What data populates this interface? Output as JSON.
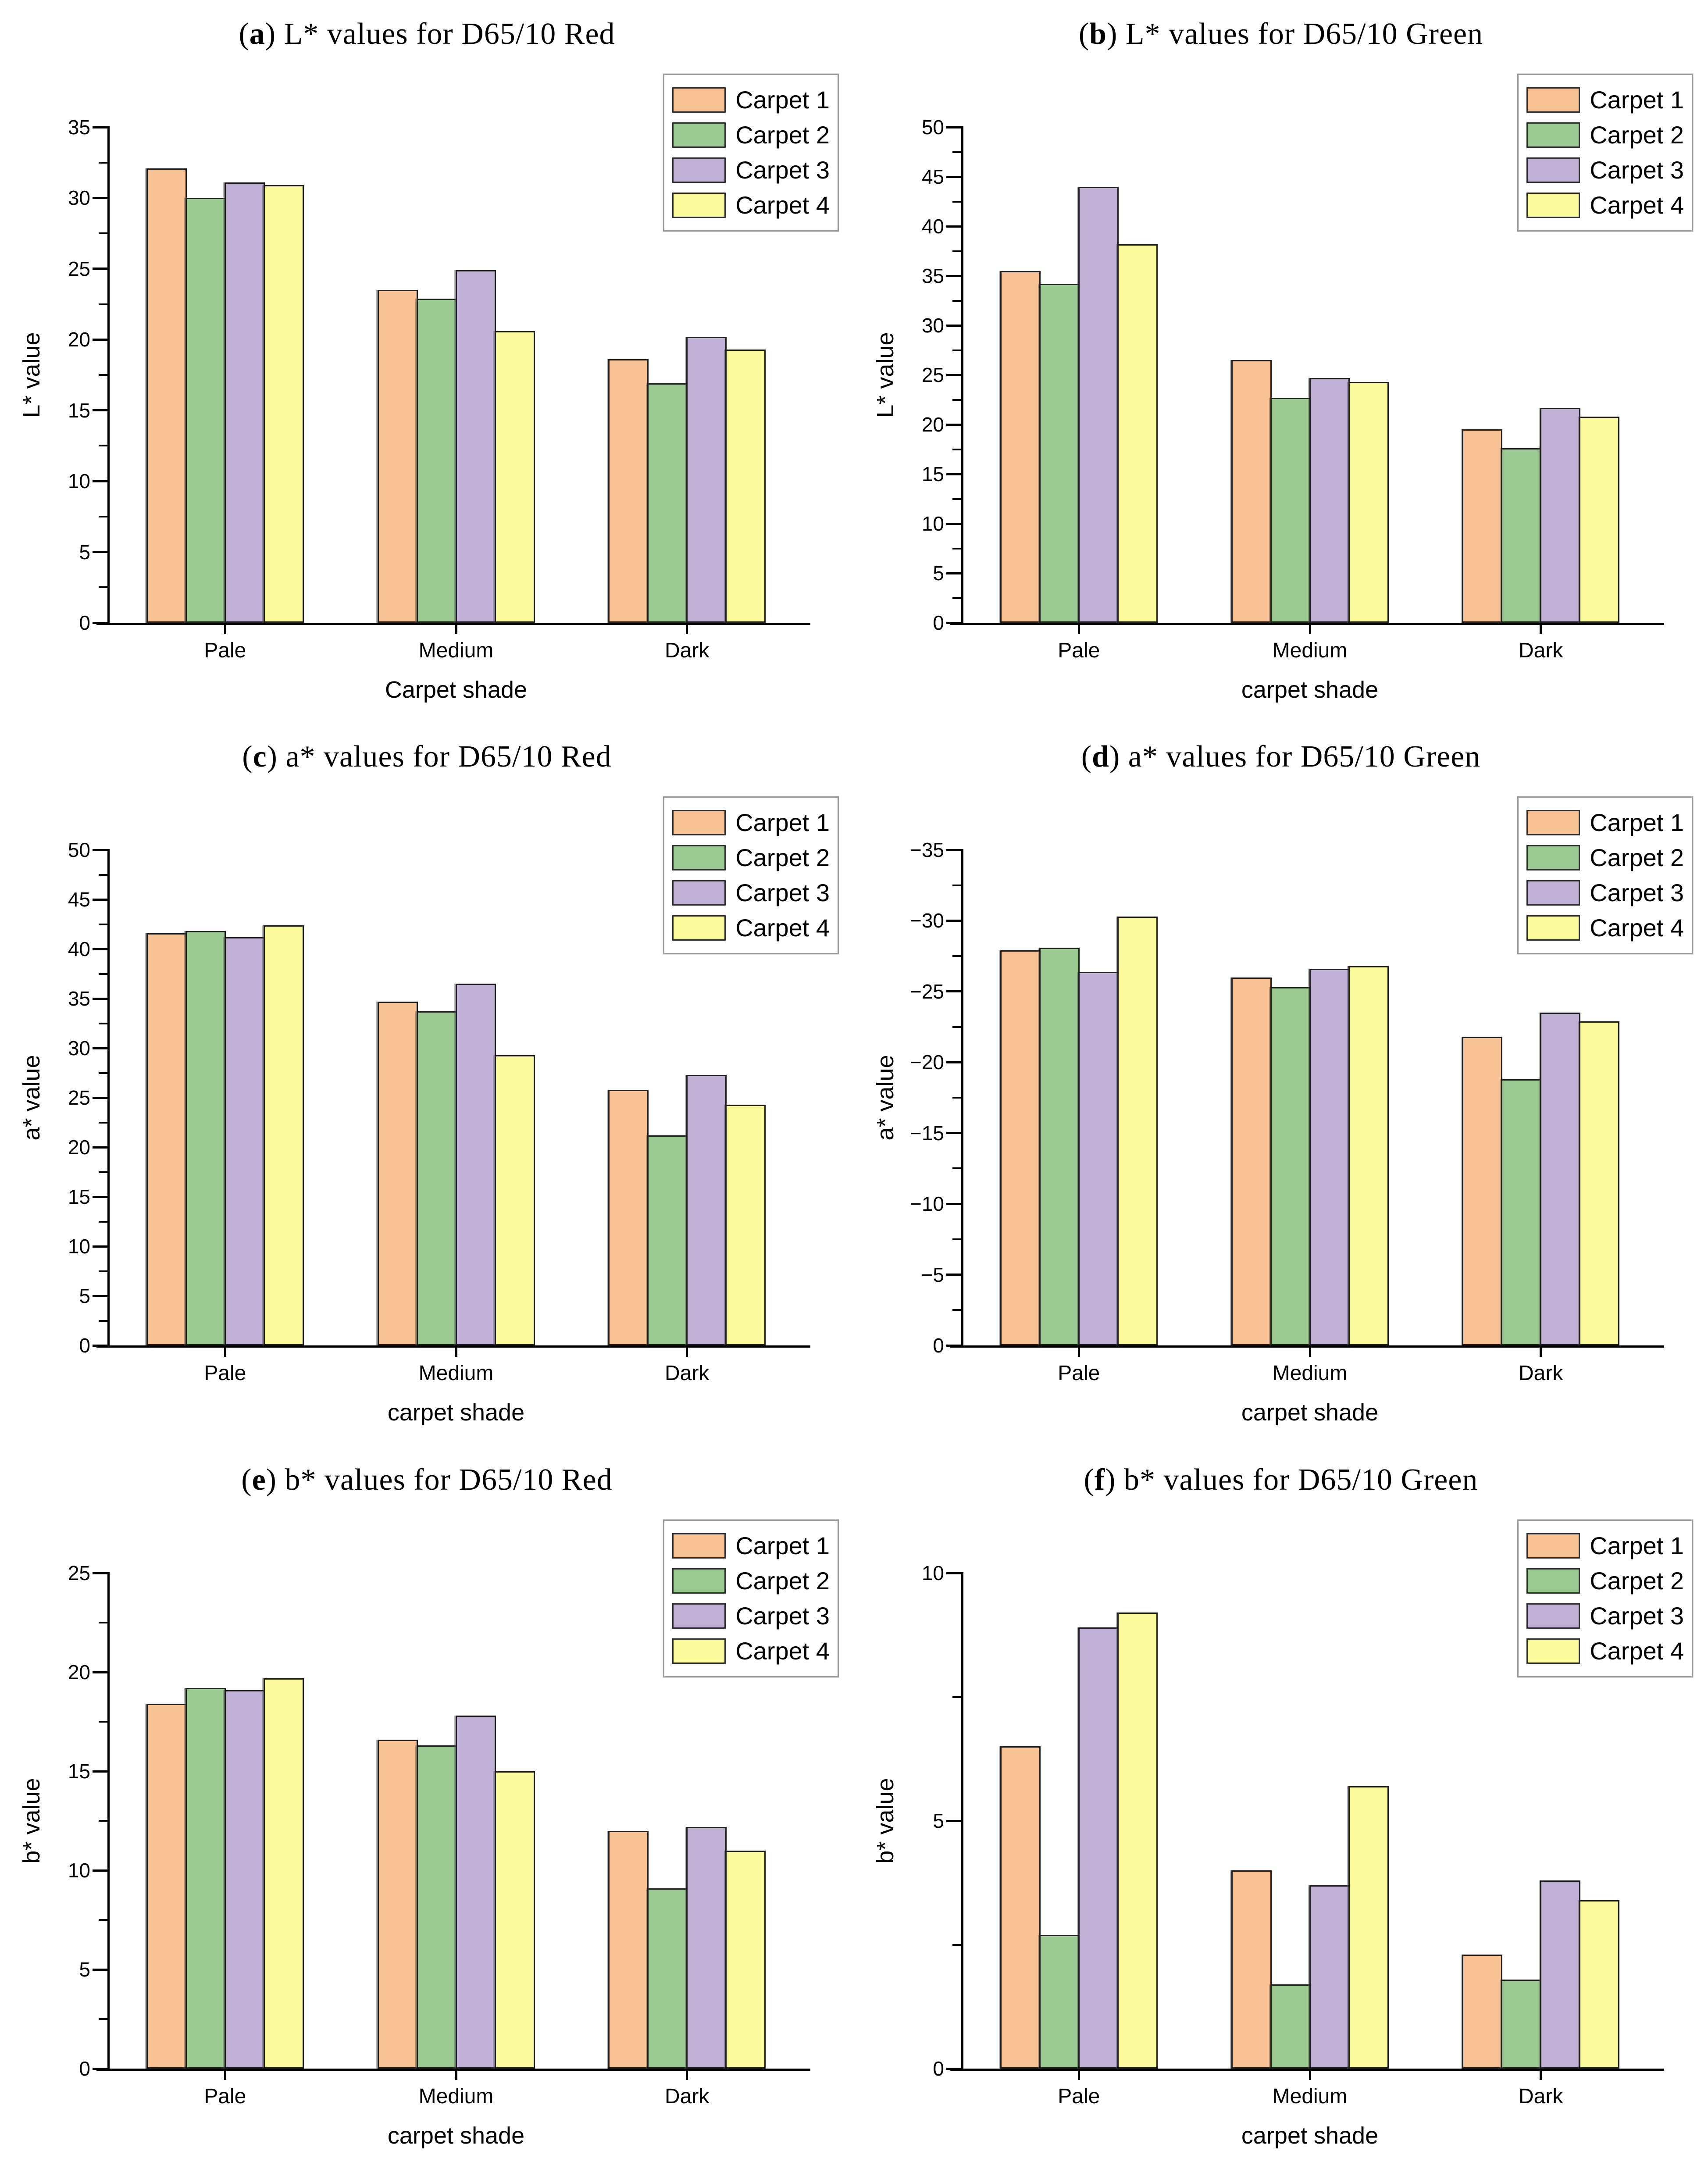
{
  "colors": {
    "series": [
      "#F8C294",
      "#9BCB93",
      "#C0B0D5",
      "#FBFA9D"
    ],
    "bar_border": "#1f1f1f",
    "axis": "#000000",
    "legend_border": "#9a9a9a"
  },
  "legend": {
    "items": [
      "Carpet 1",
      "Carpet 2",
      "Carpet 3",
      "Carpet 4"
    ]
  },
  "chart_data": [
    {
      "type": "bar",
      "panel_letter": "a",
      "title_prefix": "(",
      "title_letter": "a",
      "title_suffix": ") L* values for D65/10 Red",
      "title": "(a) L* values for D65/10 Red",
      "xlabel": "Carpet shade",
      "ylabel": "L* value",
      "ylim": [
        0,
        35
      ],
      "ymax": 35,
      "ytick_interval": 5,
      "minor_tick_interval": 2.5,
      "yticks": [
        "0",
        "5",
        "10",
        "15",
        "20",
        "25",
        "30",
        "35"
      ],
      "grid": false,
      "legend_position": "top-right",
      "categories": [
        "Pale",
        "Medium",
        "Dark"
      ],
      "series": [
        {
          "name": "Carpet 1",
          "values": [
            32.1,
            23.5,
            18.6
          ]
        },
        {
          "name": "Carpet 2",
          "values": [
            30.0,
            22.9,
            16.9
          ]
        },
        {
          "name": "Carpet 3",
          "values": [
            31.1,
            24.9,
            20.2
          ]
        },
        {
          "name": "Carpet 4",
          "values": [
            30.9,
            20.6,
            19.3
          ]
        }
      ]
    },
    {
      "type": "bar",
      "panel_letter": "b",
      "title_prefix": "(",
      "title_letter": "b",
      "title_suffix": ") L* values for D65/10 Green",
      "title": "(b) L* values for D65/10 Green",
      "xlabel": "carpet shade",
      "ylabel": "L* value",
      "ylim": [
        0,
        50
      ],
      "ymax": 50,
      "ytick_interval": 5,
      "minor_tick_interval": 2.5,
      "yticks": [
        "0",
        "5",
        "10",
        "15",
        "20",
        "25",
        "30",
        "35",
        "40",
        "45",
        "50"
      ],
      "grid": false,
      "legend_position": "top-right",
      "categories": [
        "Pale",
        "Medium",
        "Dark"
      ],
      "series": [
        {
          "name": "Carpet 1",
          "values": [
            35.5,
            26.5,
            19.5
          ]
        },
        {
          "name": "Carpet 2",
          "values": [
            34.2,
            22.7,
            17.6
          ]
        },
        {
          "name": "Carpet 3",
          "values": [
            44.0,
            24.7,
            21.7
          ]
        },
        {
          "name": "Carpet 4",
          "values": [
            38.2,
            24.3,
            20.8
          ]
        }
      ]
    },
    {
      "type": "bar",
      "panel_letter": "c",
      "title_prefix": "(",
      "title_letter": "c",
      "title_suffix": ") a* values for D65/10 Red",
      "title": "(c) a* values for D65/10 Red",
      "xlabel": "carpet shade",
      "ylabel": "a* value",
      "ylim": [
        0,
        50
      ],
      "ymax": 50,
      "ytick_interval": 5,
      "minor_tick_interval": 2.5,
      "yticks": [
        "0",
        "5",
        "10",
        "15",
        "20",
        "25",
        "30",
        "35",
        "40",
        "45",
        "50"
      ],
      "grid": false,
      "legend_position": "top-right",
      "categories": [
        "Pale",
        "Medium",
        "Dark"
      ],
      "series": [
        {
          "name": "Carpet 1",
          "values": [
            41.6,
            34.7,
            25.8
          ]
        },
        {
          "name": "Carpet 2",
          "values": [
            41.8,
            33.7,
            21.2
          ]
        },
        {
          "name": "Carpet 3",
          "values": [
            41.2,
            36.5,
            27.3
          ]
        },
        {
          "name": "Carpet 4",
          "values": [
            42.4,
            29.3,
            24.3
          ]
        }
      ]
    },
    {
      "type": "bar",
      "panel_letter": "d",
      "title_prefix": "(",
      "title_letter": "d",
      "title_suffix": ") a* values for D65/10 Green",
      "title": "(d) a* values for D65/10 Green",
      "xlabel": "carpet shade",
      "ylabel": "a* value",
      "ylim": [
        0,
        -35
      ],
      "ymax": 35,
      "inverted_axis": true,
      "ytick_interval": 5,
      "minor_tick_interval": 2.5,
      "yticks": [
        "0",
        "−5",
        "−10",
        "−15",
        "−20",
        "−25",
        "−30",
        "−35"
      ],
      "grid": false,
      "legend_position": "top-right",
      "categories": [
        "Pale",
        "Medium",
        "Dark"
      ],
      "series": [
        {
          "name": "Carpet 1",
          "values": [
            -27.9,
            -26.0,
            -21.8
          ]
        },
        {
          "name": "Carpet 2",
          "values": [
            -28.1,
            -25.3,
            -18.8
          ]
        },
        {
          "name": "Carpet 3",
          "values": [
            -26.4,
            -26.6,
            -23.5
          ]
        },
        {
          "name": "Carpet 4",
          "values": [
            -30.3,
            -26.8,
            -22.9
          ]
        }
      ]
    },
    {
      "type": "bar",
      "panel_letter": "e",
      "title_prefix": "(",
      "title_letter": "e",
      "title_suffix": ") b* values for D65/10 Red",
      "title": "(e) b* values for D65/10 Red",
      "xlabel": "carpet shade",
      "ylabel": "b* value",
      "ylim": [
        0,
        25
      ],
      "ymax": 25,
      "ytick_interval": 5,
      "minor_tick_interval": 2.5,
      "yticks": [
        "0",
        "5",
        "10",
        "15",
        "20",
        "25"
      ],
      "grid": false,
      "legend_position": "top-right",
      "categories": [
        "Pale",
        "Medium",
        "Dark"
      ],
      "series": [
        {
          "name": "Carpet 1",
          "values": [
            18.4,
            16.6,
            12.0
          ]
        },
        {
          "name": "Carpet 2",
          "values": [
            19.2,
            16.3,
            9.1
          ]
        },
        {
          "name": "Carpet 3",
          "values": [
            19.1,
            17.8,
            12.2
          ]
        },
        {
          "name": "Carpet 4",
          "values": [
            19.7,
            15.0,
            11.0
          ]
        }
      ]
    },
    {
      "type": "bar",
      "panel_letter": "f",
      "title_prefix": "(",
      "title_letter": "f",
      "title_suffix": ") b* values for D65/10 Green",
      "title": "(f) b* values for D65/10 Green",
      "xlabel": "carpet shade",
      "ylabel": "b* value",
      "ylim": [
        0,
        10
      ],
      "ymax": 10,
      "ytick_interval": 5,
      "minor_tick_interval": 2.5,
      "yticks": [
        "0",
        "5",
        "10"
      ],
      "grid": false,
      "legend_position": "top-right",
      "categories": [
        "Pale",
        "Medium",
        "Dark"
      ],
      "series": [
        {
          "name": "Carpet 1",
          "values": [
            6.5,
            4.0,
            2.3
          ]
        },
        {
          "name": "Carpet 2",
          "values": [
            2.7,
            1.7,
            1.8
          ]
        },
        {
          "name": "Carpet 3",
          "values": [
            8.9,
            3.7,
            3.8
          ]
        },
        {
          "name": "Carpet 4",
          "values": [
            9.2,
            5.7,
            3.4
          ]
        }
      ]
    }
  ]
}
